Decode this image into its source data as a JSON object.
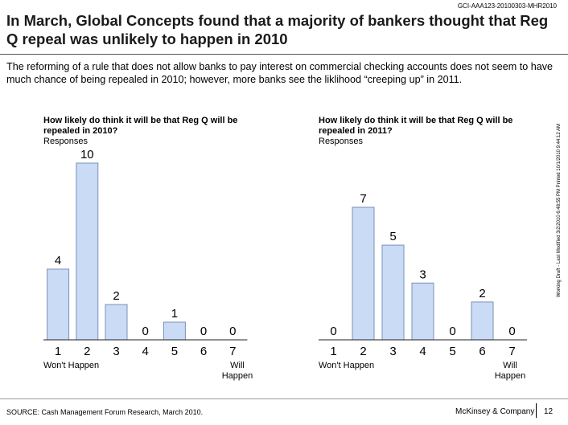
{
  "doc_id": "GCI-AAA123-20100303-MHR2010",
  "headline": "In March, Global Concepts found that a majority of bankers thought that Reg Q repeal was unlikely to happen in 2010",
  "intro": "The reforming of a rule that does not allow banks to pay interest on commercial checking accounts does not seem to have much chance of being repealed in 2010; however, more banks see the liklihood “creeping up” in 2011.",
  "side_note": "Working Draft - Last Modified 3/2/2010 6:48:55 PM    Printed 10/1/2010 9:44:12 AM",
  "footer": {
    "source": "SOURCE: Cash Management Forum Research, March 2010.",
    "company": "McKinsey & Company",
    "page": "12"
  },
  "colors": {
    "bar_fill": "#c9dbf5",
    "bar_stroke": "#7a90b8",
    "axis": "#222222"
  },
  "chart_data": [
    {
      "type": "bar",
      "title": "How likely do think it will be that Reg Q will be repealed in 2010?",
      "subtitle": "Responses",
      "categories": [
        "1",
        "2",
        "3",
        "4",
        "5",
        "6",
        "7"
      ],
      "values": [
        4,
        10,
        2,
        0,
        1,
        0,
        0
      ],
      "ylim": [
        0,
        10
      ],
      "low_label": "Won't Happen",
      "high_label": "Will Happen"
    },
    {
      "type": "bar",
      "title": "How likely do think it will be that Reg Q will be repealed in 2011?",
      "subtitle": "Responses",
      "categories": [
        "1",
        "2",
        "3",
        "4",
        "5",
        "6",
        "7"
      ],
      "values": [
        0,
        7,
        5,
        3,
        0,
        2,
        0
      ],
      "ylim": [
        0,
        7
      ],
      "low_label": "Won't Happen",
      "high_label": "Will Happen"
    }
  ]
}
